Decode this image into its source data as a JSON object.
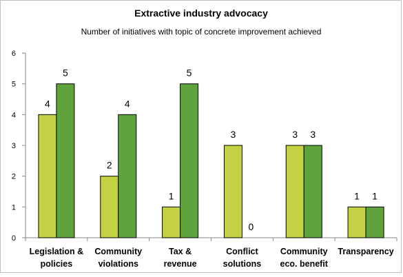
{
  "chart_data": {
    "type": "bar",
    "title": "Extractive industry advocacy",
    "subtitle": "Number of initiatives with topic of concrete improvement achieved",
    "xlabel": "",
    "ylabel": "",
    "ylim": [
      0,
      6
    ],
    "yticks": [
      "0",
      "1",
      "2",
      "3",
      "4",
      "5",
      "6"
    ],
    "categories": [
      [
        "Legislation &",
        "policies"
      ],
      [
        "Community",
        "violations"
      ],
      [
        "Tax &",
        "revenue"
      ],
      [
        "Conflict",
        "solutions"
      ],
      [
        "Community",
        "eco.  benefit"
      ],
      [
        "Transparency",
        ""
      ]
    ],
    "series": [
      {
        "color": "#c3d143",
        "values": [
          4,
          2,
          1,
          3,
          3,
          1
        ]
      },
      {
        "color": "#5ea33c",
        "values": [
          5,
          4,
          5,
          0,
          3,
          1
        ]
      }
    ],
    "grid": false,
    "legend": "none"
  }
}
